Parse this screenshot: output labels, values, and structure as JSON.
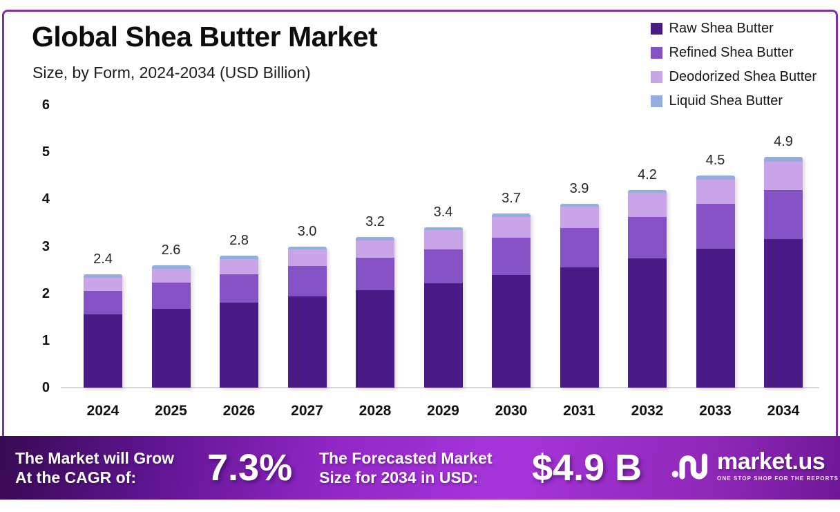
{
  "header": {
    "title": "Global Shea Butter Market",
    "subtitle": "Size, by Form, 2024-2034 (USD Billion)"
  },
  "chart_data": {
    "type": "bar",
    "stacked": true,
    "title": "Global Shea Butter Market",
    "subtitle": "Size, by Form, 2024-2034 (USD Billion)",
    "categories": [
      "2024",
      "2025",
      "2026",
      "2027",
      "2028",
      "2029",
      "2030",
      "2031",
      "2032",
      "2033",
      "2034"
    ],
    "series": [
      {
        "name": "Raw Shea Butter",
        "color": "#4A1A87",
        "values": [
          1.55,
          1.67,
          1.8,
          1.94,
          2.07,
          2.22,
          2.39,
          2.55,
          2.75,
          2.95,
          3.15
        ]
      },
      {
        "name": "Refined Shea Butter",
        "color": "#8452C5",
        "values": [
          0.5,
          0.56,
          0.61,
          0.64,
          0.69,
          0.72,
          0.79,
          0.84,
          0.88,
          0.95,
          1.05
        ]
      },
      {
        "name": "Deodorized Shea Butter",
        "color": "#C9A4E8",
        "values": [
          0.28,
          0.3,
          0.32,
          0.35,
          0.37,
          0.4,
          0.45,
          0.45,
          0.5,
          0.52,
          0.6
        ]
      },
      {
        "name": "Liquid Shea Butter",
        "color": "#93AEDD",
        "values": [
          0.07,
          0.07,
          0.07,
          0.07,
          0.07,
          0.06,
          0.07,
          0.06,
          0.07,
          0.08,
          0.1
        ]
      }
    ],
    "totals_labels": [
      "2.4",
      "2.6",
      "2.8",
      "3.0",
      "3.2",
      "3.4",
      "3.7",
      "3.9",
      "4.2",
      "4.5",
      "4.9"
    ],
    "xlabel": "",
    "ylabel": "",
    "ylim": [
      0,
      6
    ],
    "yticks": [
      "0",
      "1",
      "2",
      "3",
      "4",
      "5",
      "6"
    ],
    "grid": false,
    "legend_position": "top-right"
  },
  "banner": {
    "cagr_label_line1": "The Market will Grow",
    "cagr_label_line2": "At the CAGR of:",
    "cagr_value": "7.3%",
    "forecast_label_line1": "The Forecasted Market",
    "forecast_label_line2": "Size for 2034 in USD:",
    "forecast_value": "$4.9 B",
    "brand": {
      "name": "market.us",
      "tagline": "ONE STOP SHOP FOR THE REPORTS"
    }
  },
  "colors": {
    "frame_border": "#7C35A0",
    "axis_line": "#D9D9D9",
    "banner_gradient": [
      "#380A52",
      "#5E1490",
      "#9227C6",
      "#A735DB",
      "#8F27B8",
      "#6E1896"
    ]
  }
}
